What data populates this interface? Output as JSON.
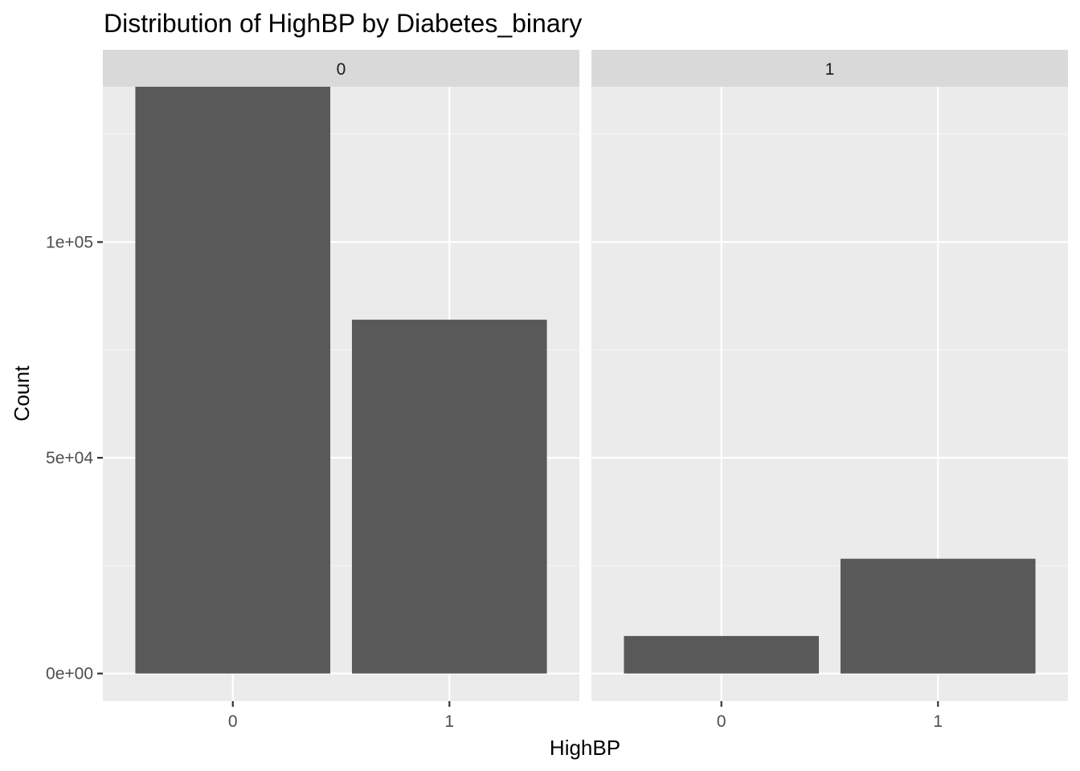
{
  "chart_data": {
    "type": "bar",
    "title": "Distribution of HighBP by Diabetes_binary",
    "xlabel": "HighBP",
    "ylabel": "Count",
    "facet_variable": "Diabetes_binary",
    "categories": [
      "0",
      "1"
    ],
    "ylim": [
      -6400,
      136000
    ],
    "y_ticks": [
      {
        "value": 0,
        "label": "0e+00"
      },
      {
        "value": 50000,
        "label": "5e+04"
      },
      {
        "value": 100000,
        "label": "1e+05"
      }
    ],
    "panels": [
      {
        "facet": "0",
        "values": [
          136000,
          82000
        ]
      },
      {
        "facet": "1",
        "values": [
          8700,
          26600
        ]
      }
    ],
    "grid": true,
    "legend": "none",
    "colors": {
      "panel_background": "#ebebeb",
      "strip_background": "#d9d9d9",
      "bar_fill": "#595959",
      "grid_major": "#ffffff",
      "grid_minor": "#f5f5f5",
      "tick_color": "#333333"
    }
  }
}
